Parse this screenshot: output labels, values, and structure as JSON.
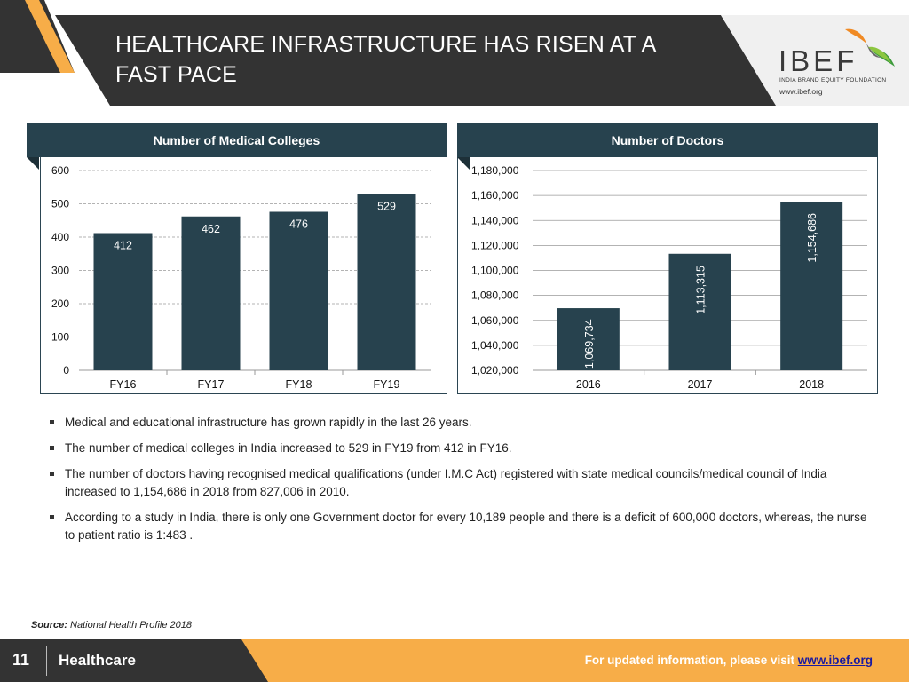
{
  "header": {
    "title": "HEALTHCARE INFRASTRUCTURE HAS RISEN AT A FAST PACE",
    "logo_text": "IBEF",
    "logo_subtitle": "INDIA BRAND EQUITY FOUNDATION",
    "logo_url": "www.ibef.org"
  },
  "colors": {
    "bar": "#27424e",
    "header_dark": "#333333",
    "accent": "#f7ad48"
  },
  "chart_data": [
    {
      "type": "bar",
      "title": "Number of Medical Colleges",
      "categories": [
        "FY16",
        "FY17",
        "FY18",
        "FY19"
      ],
      "values": [
        412,
        462,
        476,
        529
      ],
      "data_labels": [
        "412",
        "462",
        "476",
        "529"
      ],
      "ylim": [
        0,
        600
      ],
      "yticks": [
        0,
        100,
        200,
        300,
        400,
        500,
        600
      ],
      "ytick_labels": [
        "0",
        "100",
        "200",
        "300",
        "400",
        "500",
        "600"
      ],
      "grid": true
    },
    {
      "type": "bar",
      "title": "Number of Doctors",
      "categories": [
        "2016",
        "2017",
        "2018"
      ],
      "values": [
        1069734,
        1113315,
        1154686
      ],
      "data_labels": [
        "1,069,734",
        "1,113,315",
        "1,154,686"
      ],
      "ylim": [
        1020000,
        1180000
      ],
      "yticks": [
        1020000,
        1040000,
        1060000,
        1080000,
        1100000,
        1120000,
        1140000,
        1160000,
        1180000
      ],
      "ytick_labels": [
        "1,020,000",
        "1,040,000",
        "1,060,000",
        "1,080,000",
        "1,100,000",
        "1,120,000",
        "1,140,000",
        "1,160,000",
        "1,180,000"
      ],
      "grid": true
    }
  ],
  "bullets": [
    "Medical and educational infrastructure has grown rapidly in the last 26 years.",
    "The number of medical colleges in India increased to 529 in FY19 from 412 in FY16.",
    "The number of doctors having recognised medical qualifications (under I.M.C Act) registered with state medical councils/medical council of India increased to 1,154,686 in 2018 from 827,006 in 2010.",
    "According to a study in India, there is only one Government doctor for every 10,189 people and there is a deficit of 600,000 doctors, whereas, the nurse to patient ratio is 1:483 ."
  ],
  "source": {
    "label": "Source:",
    "text": "National Health Profile 2018"
  },
  "footer": {
    "page_number": "11",
    "section": "Healthcare",
    "cta_text": "For updated information, please visit",
    "cta_link": "www.ibef.org"
  }
}
